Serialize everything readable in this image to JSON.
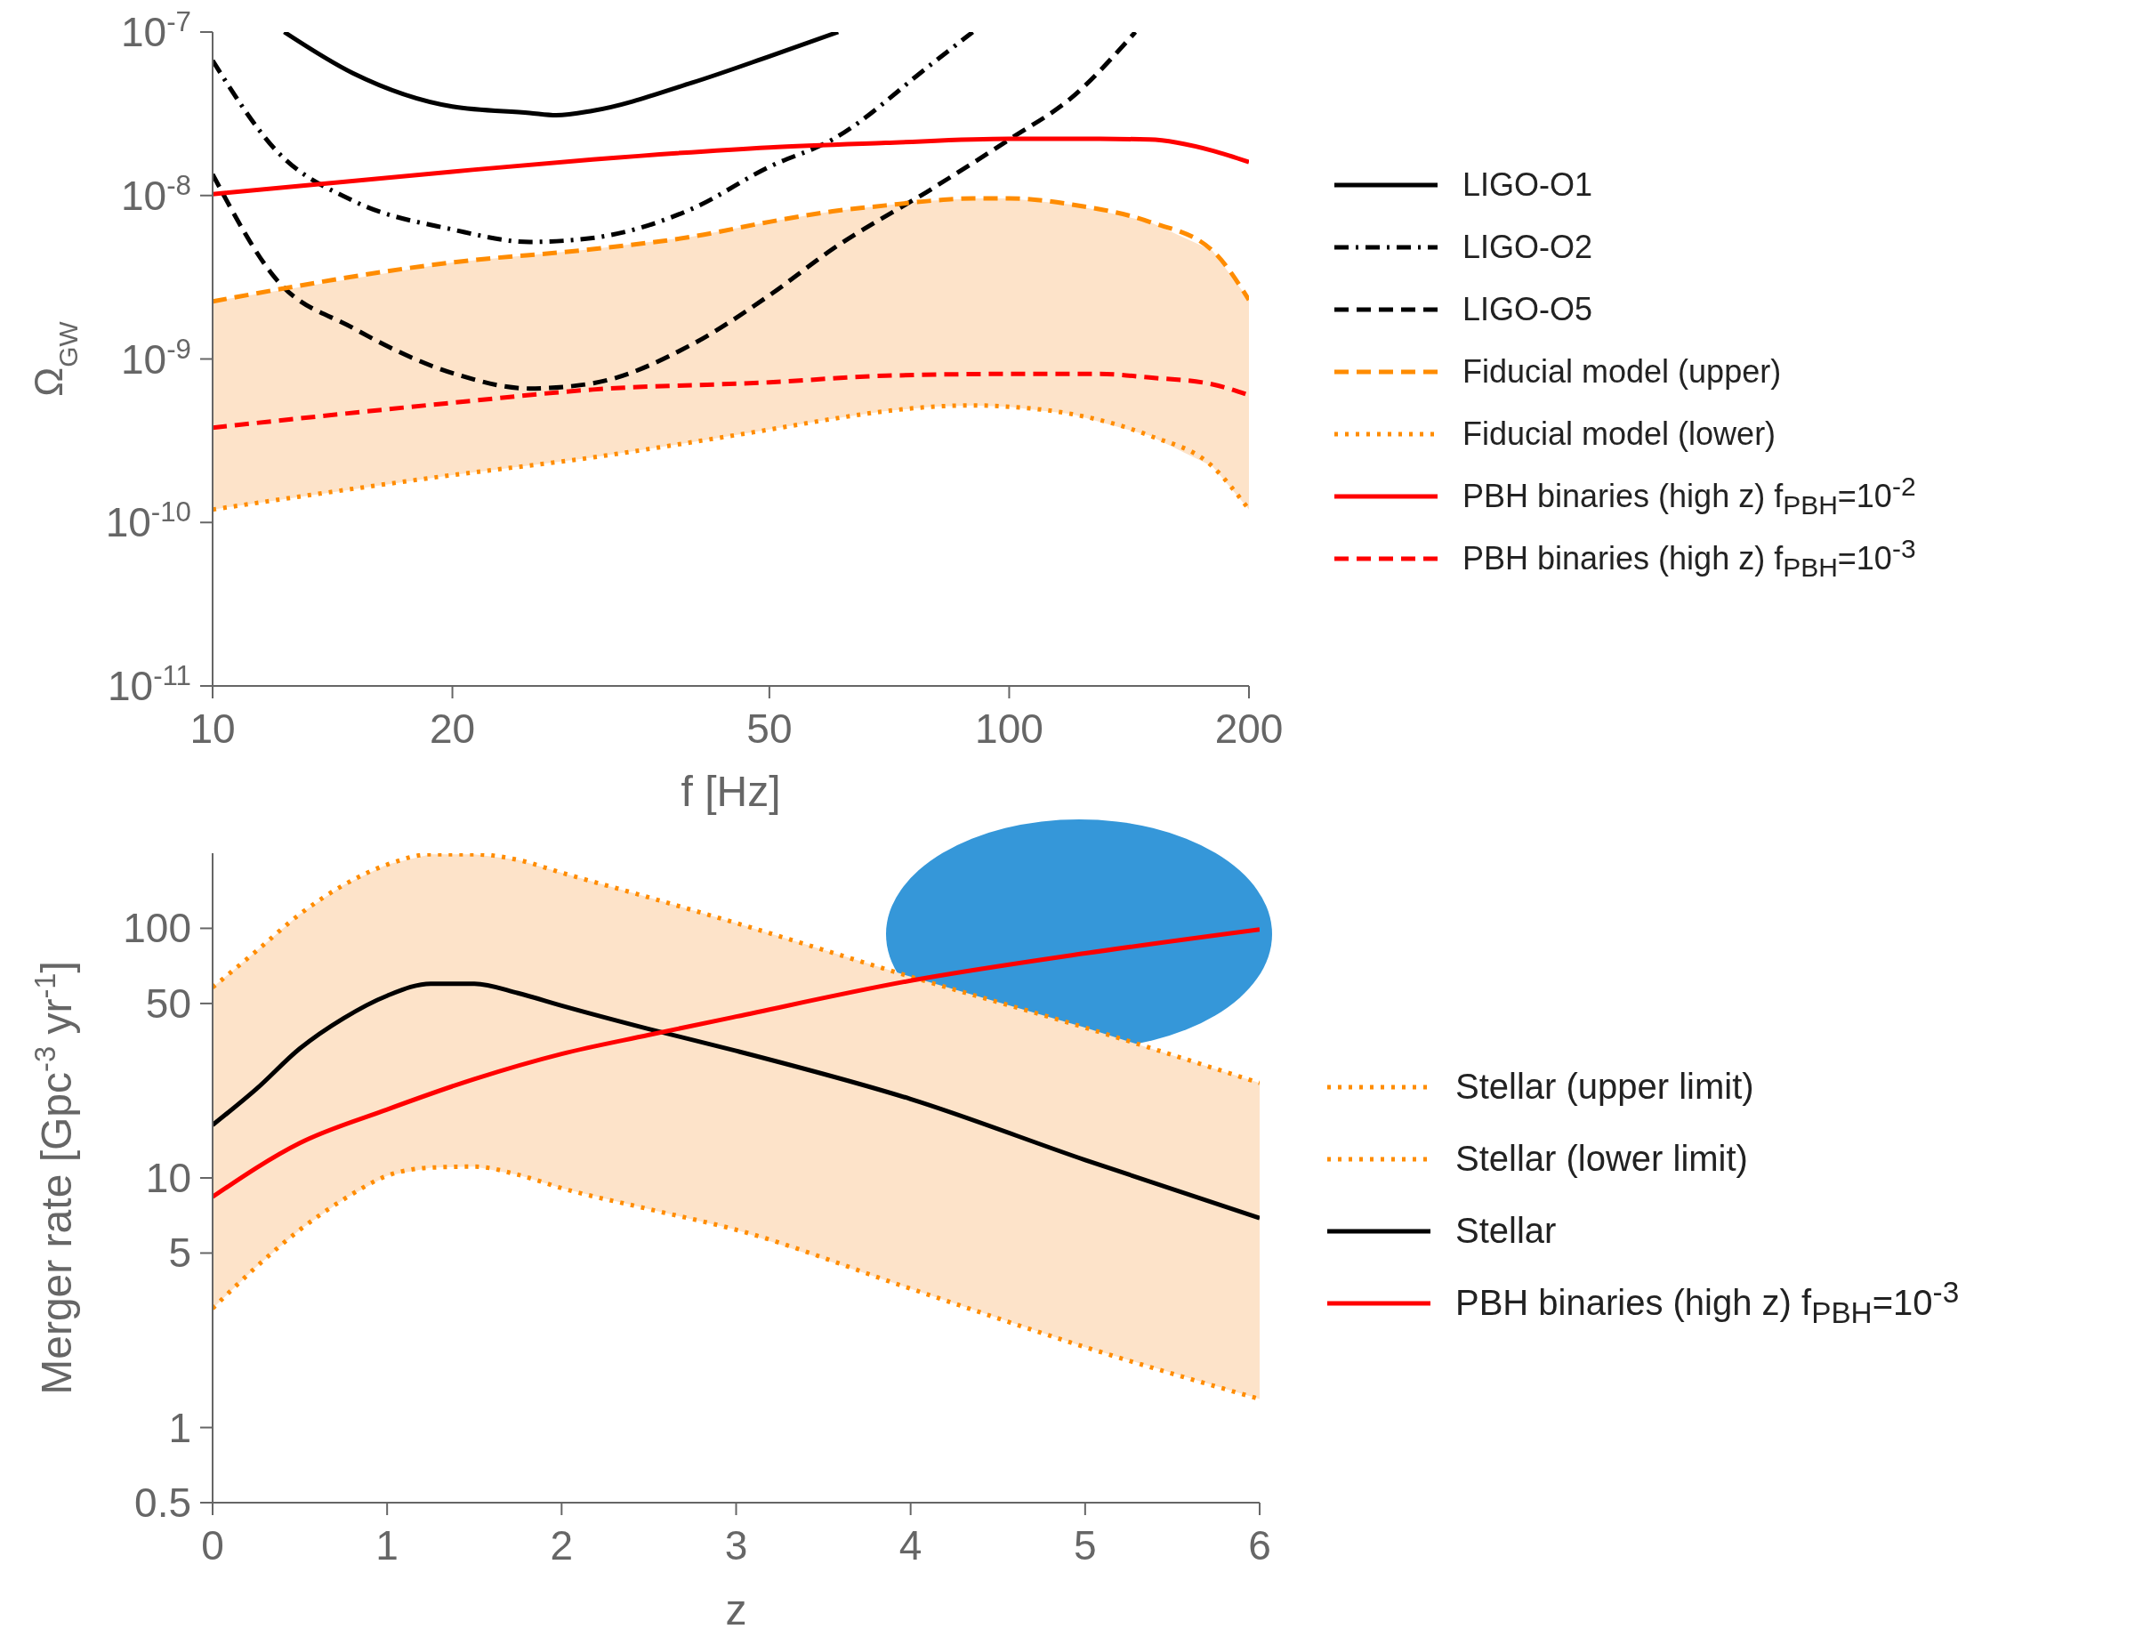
{
  "chart_data": [
    {
      "type": "line",
      "xlabel": "f [Hz]",
      "ylabel": "Ω$_{GW}$",
      "log": "xy",
      "legend": "right",
      "xlim": [
        10,
        200
      ],
      "xticks": [
        10,
        20,
        50,
        100,
        200
      ],
      "ylim": [
        1e-11,
        1e-07
      ],
      "yticks": [
        {
          "value": 1e-11,
          "label": "10$^{-11}$"
        },
        {
          "value": 1e-10,
          "label": "10$^{-10}$"
        },
        {
          "value": 1e-09,
          "label": "10$^{-9}$"
        },
        {
          "value": 1e-08,
          "label": "10$^{-8}$"
        },
        {
          "value": 1e-07,
          "label": "10$^{-7}$"
        }
      ],
      "series": [
        {
          "name": "LIGO-O1",
          "color": "#000000",
          "line_style": "solid",
          "x": [
            12.3,
            15,
            20,
            25,
            27,
            30,
            40,
            50,
            61
          ],
          "values": [
            1e-07,
            5.6e-08,
            3.5e-08,
            3.2e-08,
            3.1e-08,
            3.3e-08,
            4.9e-08,
            7.1e-08,
            1e-07
          ]
        },
        {
          "name": "LIGO-O2",
          "color": "#000000",
          "line_style": "dashdot",
          "x": [
            10,
            12,
            15,
            20,
            25,
            30,
            40,
            50,
            60,
            80,
            90
          ],
          "values": [
            6.7e-08,
            1.9e-08,
            9.3e-09,
            6.2e-09,
            5.2e-09,
            5.5e-09,
            8.3e-09,
            1.5e-08,
            2.2e-08,
            6.4e-08,
            1e-07
          ]
        },
        {
          "name": "LIGO-O5",
          "color": "#000000",
          "line_style": "dashed",
          "x": [
            10,
            12,
            15,
            20,
            25,
            30,
            40,
            50,
            60,
            80,
            100,
            120,
            144
          ],
          "values": [
            1.35e-08,
            3.1e-09,
            1.55e-09,
            8.2e-10,
            6.6e-10,
            7.1e-10,
            1.23e-09,
            2.45e-09,
            4.7e-09,
            1.1e-08,
            2.2e-08,
            4e-08,
            1e-07
          ]
        },
        {
          "name": "Fiducial model (upper)",
          "color": "#ff8c00",
          "line_style": "dashed",
          "x": [
            10,
            20,
            30,
            40,
            50,
            60,
            70,
            80,
            90,
            100,
            120,
            150,
            180,
            200
          ],
          "values": [
            2.25e-09,
            3.9e-09,
            4.7e-09,
            5.6e-09,
            6.9e-09,
            8e-09,
            8.7e-09,
            9.3e-09,
            9.6e-09,
            9.6e-09,
            8.8e-09,
            6.9e-09,
            4.6e-09,
            2.3e-09
          ],
          "lower": [
            1.2e-10,
            1.95e-10,
            2.5e-10,
            3.1e-10,
            3.7e-10,
            4.3e-10,
            4.8e-10,
            5.1e-10,
            5.2e-10,
            5.1e-10,
            4.6e-10,
            3.4e-10,
            2.2e-10,
            1.2e-10
          ],
          "upper": [
            2.25e-09,
            3.9e-09,
            4.7e-09,
            5.6e-09,
            6.9e-09,
            8e-09,
            8.7e-09,
            9.3e-09,
            9.6e-09,
            9.6e-09,
            8.8e-09,
            6.9e-09,
            4.6e-09,
            2.3e-09
          ]
        },
        {
          "name": "Fiducial model (lower)",
          "color": "#ff8c00",
          "line_style": "dotted",
          "x": [
            10,
            20,
            30,
            40,
            50,
            60,
            70,
            80,
            90,
            100,
            120,
            150,
            180,
            200
          ],
          "values": [
            1.2e-10,
            1.95e-10,
            2.5e-10,
            3.1e-10,
            3.7e-10,
            4.3e-10,
            4.8e-10,
            5.1e-10,
            5.2e-10,
            5.1e-10,
            4.6e-10,
            3.4e-10,
            2.2e-10,
            1.2e-10
          ]
        },
        {
          "name": "PBH binaries (high z) f$_{PBH}$=10$^{-2}$",
          "color": "#ff0000",
          "line_style": "solid",
          "x": [
            10,
            20,
            30,
            50,
            70,
            100,
            130,
            150,
            180,
            200
          ],
          "values": [
            1.02e-08,
            1.4e-08,
            1.66e-08,
            1.97e-08,
            2.1e-08,
            2.22e-08,
            2.22e-08,
            2.2e-08,
            1.88e-08,
            1.6e-08
          ]
        },
        {
          "name": "PBH binaries (high z) f$_{PBH}$=10$^{-3}$",
          "color": "#ff0000",
          "line_style": "dashed",
          "x": [
            10,
            20,
            30,
            50,
            70,
            100,
            130,
            150,
            180,
            200
          ],
          "values": [
            3.8e-10,
            5.4e-10,
            6.5e-10,
            7.2e-10,
            7.9e-10,
            8.1e-10,
            8.1e-10,
            7.7e-10,
            7e-10,
            6e-10
          ]
        }
      ]
    },
    {
      "type": "line",
      "xlabel": "z",
      "ylabel": "Merger rate [Gpc$^{-3}$ yr$^{-1}$]",
      "log": "y",
      "legend": "right",
      "xlim": [
        0,
        6
      ],
      "xticks": [
        0,
        1,
        2,
        3,
        4,
        5,
        6
      ],
      "ylim": [
        0.5,
        200
      ],
      "yticks": [
        0.5,
        1,
        5,
        10,
        50,
        100
      ],
      "series": [
        {
          "name": "Stellar (upper limit)",
          "color": "#ff8c00",
          "line_style": "dotted",
          "x": [
            0,
            0.25,
            0.5,
            0.75,
            1,
            1.25,
            1.5,
            1.75,
            2,
            2.5,
            3,
            4,
            5,
            6
          ],
          "values": [
            58,
            81,
            114,
            149,
            180,
            198,
            198,
            188,
            167,
            133,
            105,
            64,
            40,
            24
          ],
          "lower": [
            3,
            4.4,
            6.2,
            8.2,
            10.2,
            11,
            11.1,
            10.3,
            9.1,
            7.5,
            6.2,
            3.6,
            2.1,
            1.3
          ],
          "upper": [
            58,
            81,
            114,
            149,
            180,
            198,
            198,
            188,
            167,
            133,
            105,
            64,
            40,
            24
          ]
        },
        {
          "name": "Stellar (lower limit)",
          "color": "#ff8c00",
          "line_style": "dotted",
          "x": [
            0,
            0.25,
            0.5,
            0.75,
            1,
            1.25,
            1.5,
            1.75,
            2,
            2.5,
            3,
            4,
            5,
            6
          ],
          "values": [
            3,
            4.4,
            6.2,
            8.2,
            10.2,
            11,
            11.1,
            10.3,
            9.1,
            7.5,
            6.2,
            3.6,
            2.1,
            1.3
          ]
        },
        {
          "name": "Stellar",
          "color": "#000000",
          "line_style": "solid",
          "x": [
            0,
            0.25,
            0.5,
            0.75,
            1,
            1.25,
            1.5,
            1.75,
            2,
            2.5,
            3,
            4,
            5,
            6
          ],
          "values": [
            16.3,
            22.7,
            33,
            43.6,
            53.7,
            60,
            60,
            55,
            49,
            39.5,
            32.3,
            20.7,
            11.8,
            6.9
          ]
        },
        {
          "name": "PBH binaries (high z) f$_{PBH}$=10$^{-3}$",
          "color": "#ff0000",
          "line_style": "solid",
          "x": [
            0,
            0.5,
            1,
            1.5,
            2,
            2.5,
            3,
            4,
            5,
            6
          ],
          "values": [
            8.4,
            13.8,
            18.8,
            24.9,
            31.4,
            37.4,
            44.3,
            61.7,
            79.4,
            99
          ]
        }
      ]
    }
  ]
}
